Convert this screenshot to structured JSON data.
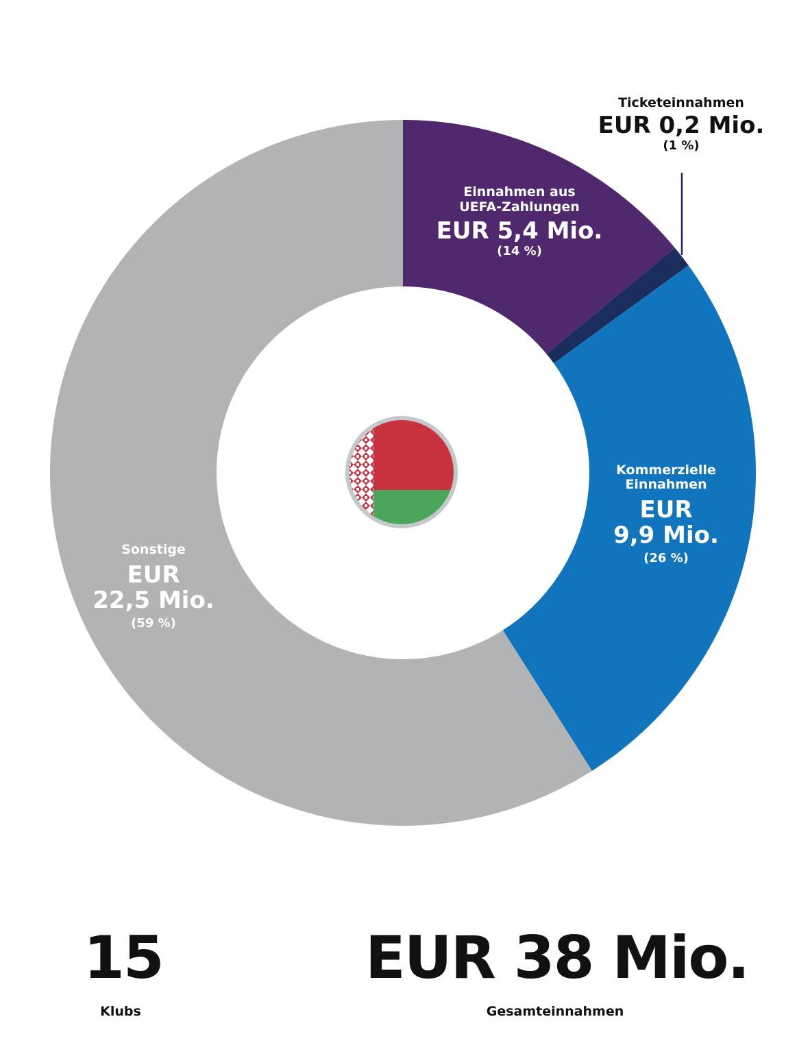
{
  "chart_data": {
    "type": "pie",
    "donut": true,
    "start": "top",
    "direction": "clockwise",
    "unit": "EUR Mio.",
    "slices": [
      {
        "name_lines": [
          "Einnahmen aus",
          "UEFA-Zahlungen"
        ],
        "value": 5.4,
        "value_label": "EUR 5,4 Mio.",
        "percent": 14,
        "percent_label": "(14 %)",
        "color": "#50286d"
      },
      {
        "name_lines": [
          "Ticketeinnahmen"
        ],
        "value": 0.2,
        "value_label": "EUR 0,2 Mio.",
        "percent": 1,
        "percent_label": "(1 %)",
        "color": "#1b2d5c"
      },
      {
        "name_lines": [
          "Kommerzielle",
          "Einnahmen"
        ],
        "value": 9.9,
        "value_label_lines": [
          "EUR",
          "9,9 Mio."
        ],
        "percent": 26,
        "percent_label": "(26 %)",
        "color": "#1175bd"
      },
      {
        "name_lines": [
          "Sonstige"
        ],
        "value": 22.5,
        "value_label_lines": [
          "EUR",
          "22,5 Mio."
        ],
        "percent": 59,
        "percent_label": "(59 %)",
        "color": "#b1b3b4"
      }
    ],
    "center_icon": "belarus-flag"
  },
  "summary": {
    "clubs_value": "15",
    "clubs_label": "Klubs",
    "total_value": "EUR 38 Mio.",
    "total_label": "Gesamteinnahmen"
  },
  "colors": {
    "flag_red": "#c8323f",
    "flag_green": "#4ba55a",
    "flag_ring": "#c3c8ca",
    "leader_line": "#1b2d5c"
  }
}
